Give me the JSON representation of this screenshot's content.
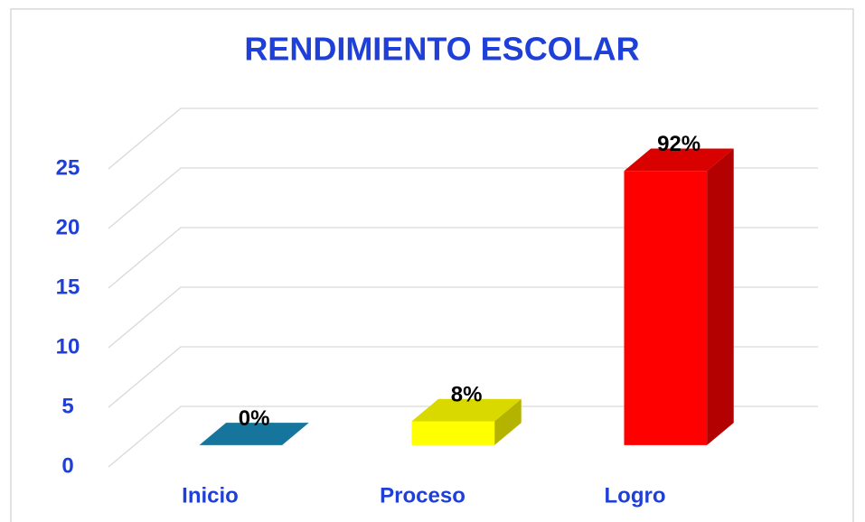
{
  "chart_data": {
    "type": "bar3d",
    "title": "RENDIMIENTO  ESCOLAR",
    "categories": [
      "Inicio",
      "Proceso",
      "Logro"
    ],
    "values": [
      0,
      2,
      23
    ],
    "value_labels": [
      "0%",
      "8%",
      "92%"
    ],
    "colors": [
      "#1a8ab8",
      "#ffff00",
      "#ff0000"
    ],
    "ylim": [
      0,
      25
    ],
    "yticks": [
      0,
      5,
      10,
      15,
      20,
      25
    ],
    "grid": true
  }
}
